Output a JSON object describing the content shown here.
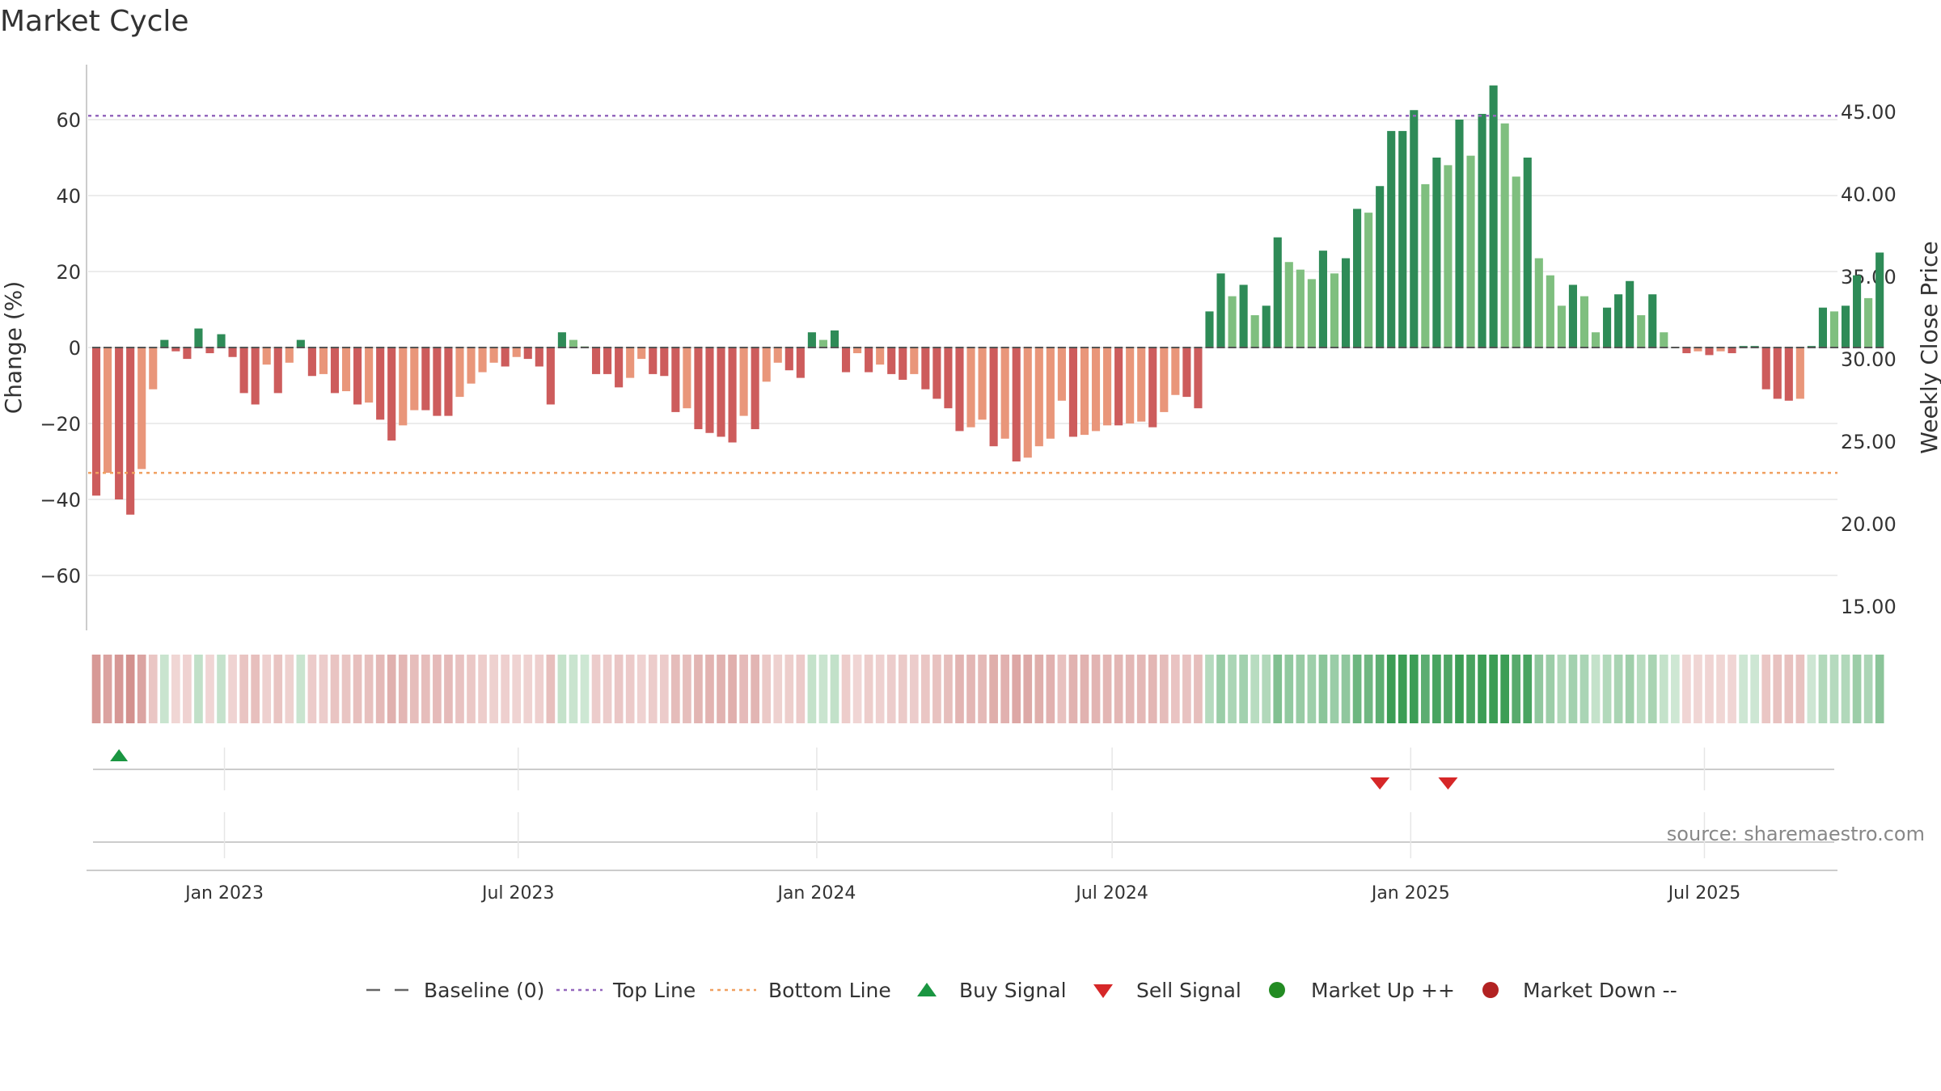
{
  "chart_data": {
    "type": "bar",
    "title": "Market Cycle",
    "ylabel": "Change (%)",
    "y2label": "Weekly Close Price",
    "ylim": [
      -75,
      75
    ],
    "y2lim": [
      12.5,
      47.5
    ],
    "y_ticks": [
      60,
      40,
      20,
      0,
      -20,
      -40,
      -60
    ],
    "y_tick_labels": [
      "60",
      "40",
      "20",
      "0",
      "−20",
      "−40",
      "−60"
    ],
    "y2_ticks": [
      45,
      40,
      35,
      30,
      25,
      20,
      15
    ],
    "y2_tick_labels": [
      "45.00",
      "40.00",
      "35.00",
      "30.00",
      "25.00",
      "20.00",
      "15.00"
    ],
    "x_ticks": [
      "2023-01-01",
      "2023-07-01",
      "2024-01-01",
      "2024-07-01",
      "2025-01-01",
      "2025-07-01"
    ],
    "x_tick_labels": [
      "Jan 2023",
      "Jul 2023",
      "Jan 2024",
      "Jul 2024",
      "Jan 2025",
      "Jul 2025"
    ],
    "x_range": [
      "2022-10-09",
      "2025-09-21"
    ],
    "grid": true,
    "top_line": 61,
    "bottom_line": -33,
    "first_week": "2022-10-14",
    "values": [
      -39,
      -33,
      -40,
      -44,
      -32,
      -11,
      2,
      -1,
      -3,
      5,
      -1.5,
      3.5,
      -2.5,
      -12,
      -15,
      -4.5,
      -12,
      -4,
      2,
      -7.5,
      -7,
      -12,
      -11.5,
      -15,
      -14.5,
      -19,
      -24.5,
      -20.5,
      -16.5,
      -16.5,
      -18,
      -18,
      -13,
      -9.5,
      -6.5,
      -4,
      -5,
      -2.5,
      -3,
      -5,
      -15,
      4,
      2,
      0.3,
      -7,
      -7,
      -10.5,
      -8,
      -3,
      -7,
      -7.5,
      -17,
      -16,
      -21.5,
      -22.5,
      -23.5,
      -25,
      -18,
      -21.5,
      -9,
      -4,
      -6,
      -8,
      4,
      2,
      4.5,
      -6.5,
      -1.5,
      -6.5,
      -4.5,
      -7,
      -8.5,
      -7,
      -11,
      -13.5,
      -16,
      -22,
      -21,
      -19,
      -26,
      -24,
      -30,
      -29,
      -26,
      -24,
      -14,
      -23.5,
      -23,
      -22,
      -20.5,
      -20.5,
      -20,
      -19.5,
      -21,
      -17,
      -12.5,
      -13,
      -16,
      9.5,
      19.5,
      13.5,
      16.5,
      8.5,
      11,
      29,
      22.5,
      20.5,
      18,
      25.5,
      19.5,
      23.5,
      36.5,
      35.5,
      42.5,
      57,
      57,
      62.5,
      43,
      50,
      48,
      60,
      50.5,
      61.5,
      69,
      59,
      45,
      50,
      23.5,
      19,
      11,
      16.5,
      13.5,
      4,
      10.5,
      14,
      17.5,
      8.5,
      14,
      4,
      0.2,
      -1.5,
      -1,
      -2,
      -1,
      -1.5,
      0.4,
      0.4,
      -11,
      -13.5,
      -14,
      -13.5,
      0.4,
      10.5,
      9.5,
      11,
      19,
      13,
      25
    ],
    "signals": [
      {
        "type": "buy",
        "date": "2022-10-28"
      },
      {
        "type": "sell",
        "date": "2024-12-13"
      },
      {
        "type": "sell",
        "date": "2025-01-24"
      }
    ],
    "colors": {
      "up_strong": "#2e8b57",
      "up_weak": "#7fbf7f",
      "down_strong": "#cd5c5c",
      "down_weak": "#e9967a",
      "top_line": "#9467bd",
      "bottom_line": "#f0a060",
      "buy": "#1a9641",
      "sell": "#d62728",
      "market_up": "#228b22",
      "market_down": "#b22222",
      "baseline": "#555555"
    },
    "legend_position": "bottom-center",
    "legend": [
      {
        "label": "Baseline (0)",
        "marker": "dash"
      },
      {
        "label": "Top Line",
        "marker": "dot-line-purple"
      },
      {
        "label": "Bottom Line",
        "marker": "dot-line-orange"
      },
      {
        "label": "Buy Signal",
        "marker": "triangle-up"
      },
      {
        "label": "Sell Signal",
        "marker": "triangle-down"
      },
      {
        "label": "Market Up ++",
        "marker": "circle-green"
      },
      {
        "label": "Market Down --",
        "marker": "circle-red"
      }
    ],
    "source": "source: sharemaestro.com"
  }
}
